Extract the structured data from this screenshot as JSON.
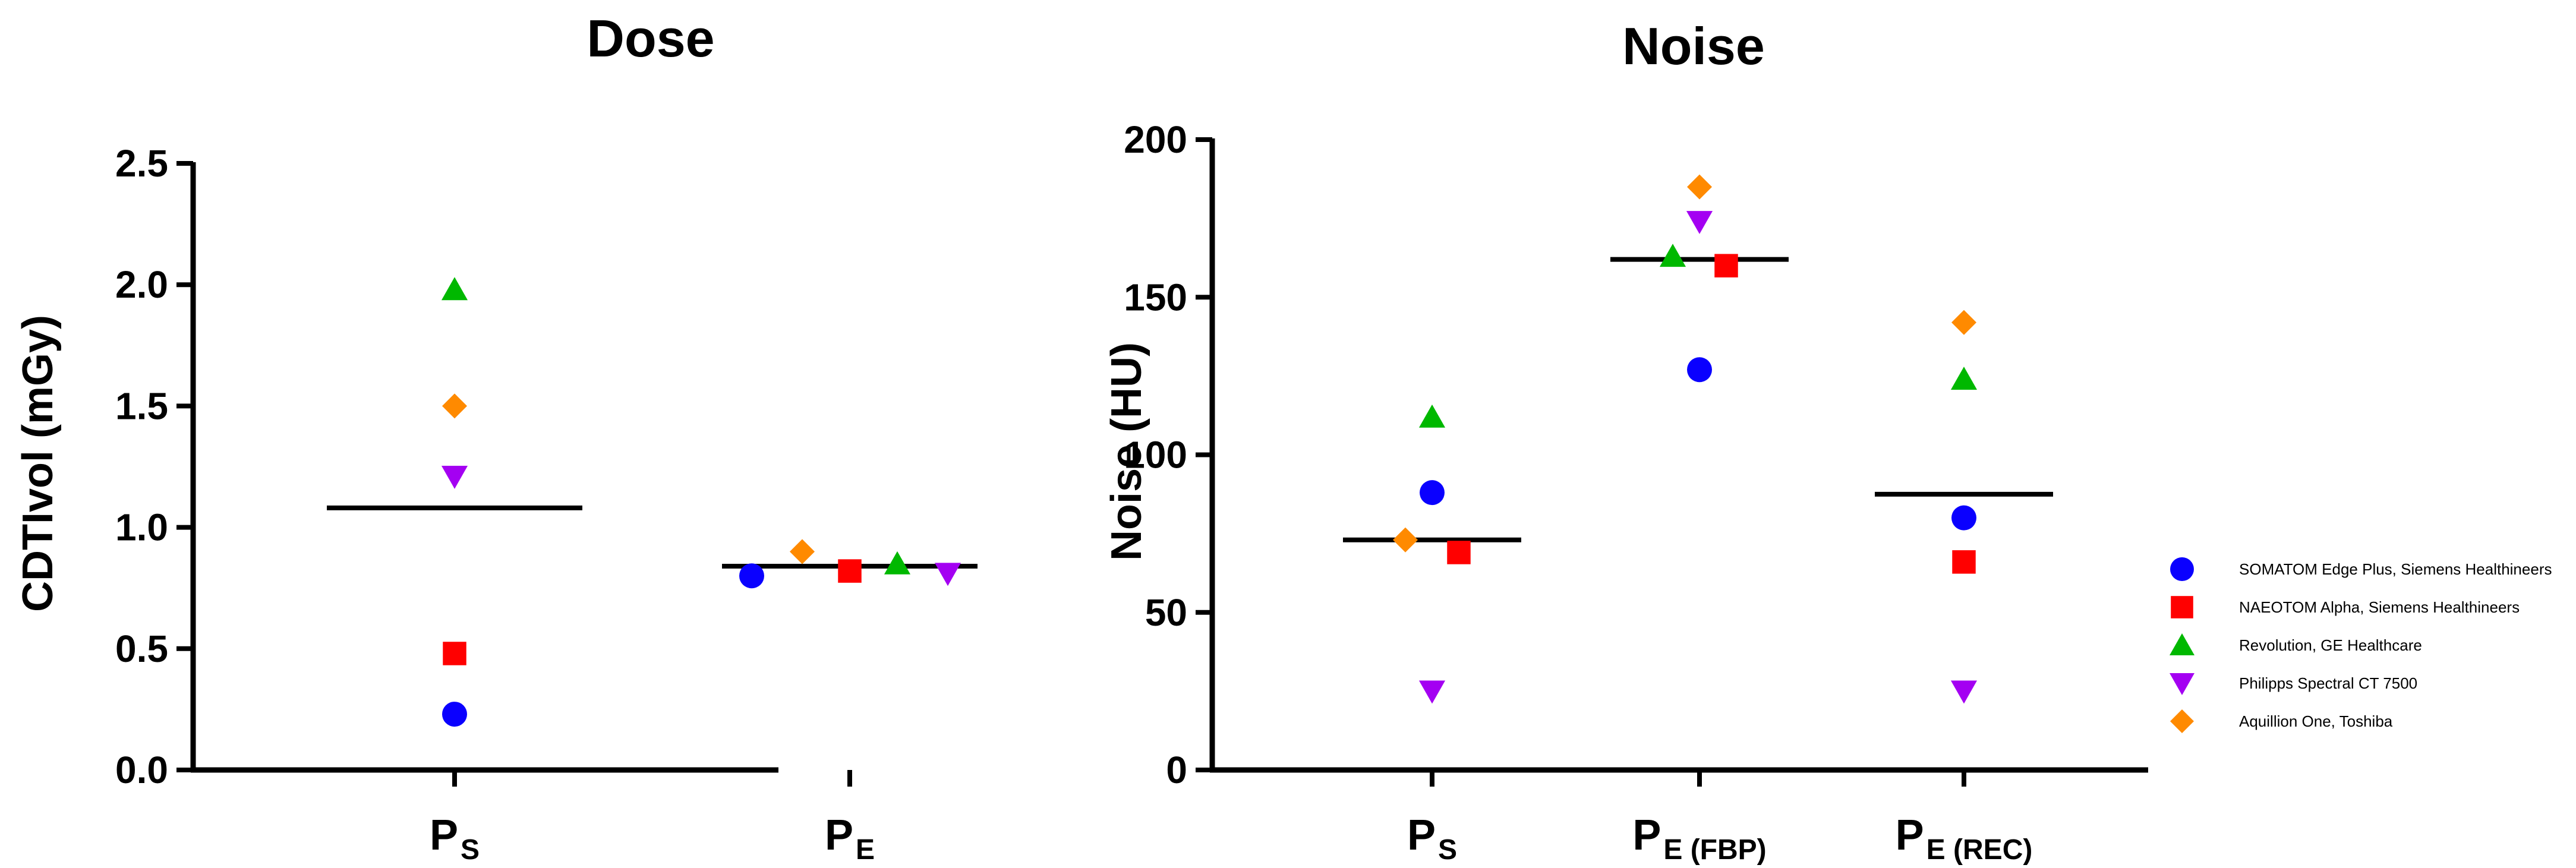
{
  "chart_data": [
    {
      "type": "scatter",
      "title": "Dose",
      "ylabel": "CDTIvol (mGy)",
      "xlabel": "",
      "ylim": [
        0,
        2.5
      ],
      "yticks": [
        "0.0",
        "0.5",
        "1.0",
        "1.5",
        "2.0",
        "2.5"
      ],
      "categories": [
        {
          "main": "P",
          "sub": "S"
        },
        {
          "main": "P",
          "sub": "E"
        }
      ],
      "series": [
        {
          "name": "SOMATOM Edge Plus, Siemens Healthineers",
          "marker": "circle",
          "values": [
            0.23,
            0.8
          ]
        },
        {
          "name": "NAEOTOM Alpha, Siemens Healthineers",
          "marker": "square",
          "values": [
            0.48,
            0.82
          ]
        },
        {
          "name": "Revolution, GE Healthcare",
          "marker": "triangle-up",
          "values": [
            1.98,
            0.85
          ]
        },
        {
          "name": "Philipps Spectral CT 7500",
          "marker": "triangle-down",
          "values": [
            1.21,
            0.81
          ]
        },
        {
          "name": "Aquillion One, Toshiba",
          "marker": "diamond",
          "values": [
            1.5,
            0.9
          ]
        }
      ],
      "means": [
        1.08,
        0.84
      ]
    },
    {
      "type": "scatter",
      "title": "Noise",
      "ylabel": "Noise (HU)",
      "xlabel": "",
      "ylim": [
        0,
        200
      ],
      "yticks": [
        "0",
        "50",
        "100",
        "150",
        "200"
      ],
      "categories": [
        {
          "main": "P",
          "sub": "S"
        },
        {
          "main": "P",
          "sub": "E (FBP)"
        },
        {
          "main": "P",
          "sub": "E (REC)"
        }
      ],
      "series": [
        {
          "name": "SOMATOM Edge Plus, Siemens Healthineers",
          "marker": "circle",
          "values": [
            88,
            127,
            80
          ]
        },
        {
          "name": "NAEOTOM Alpha, Siemens Healthineers",
          "marker": "square",
          "values": [
            69,
            160,
            66
          ]
        },
        {
          "name": "Revolution, GE Healthcare",
          "marker": "triangle-up",
          "values": [
            112,
            163,
            124
          ]
        },
        {
          "name": "Philipps Spectral CT 7500",
          "marker": "triangle-down",
          "values": [
            25,
            174,
            25
          ]
        },
        {
          "name": "Aquillion One, Toshiba",
          "marker": "diamond",
          "values": [
            73,
            185,
            142
          ]
        }
      ],
      "means": [
        73,
        162,
        87.5
      ]
    }
  ],
  "legend": {
    "placement": "right",
    "items": [
      {
        "label": "SOMATOM Edge Plus, Siemens Healthineers",
        "marker": "circle",
        "color": "#0a00ff"
      },
      {
        "label": "NAEOTOM Alpha, Siemens Healthineers",
        "marker": "square",
        "color": "#ff0000"
      },
      {
        "label": "Revolution, GE Healthcare",
        "marker": "triangle-up",
        "color": "#00b800"
      },
      {
        "label": "Philipps Spectral CT 7500",
        "marker": "triangle-down",
        "color": "#a400f2"
      },
      {
        "label": "Aquillion One, Toshiba",
        "marker": "diamond",
        "color": "#ff8a00"
      }
    ]
  }
}
